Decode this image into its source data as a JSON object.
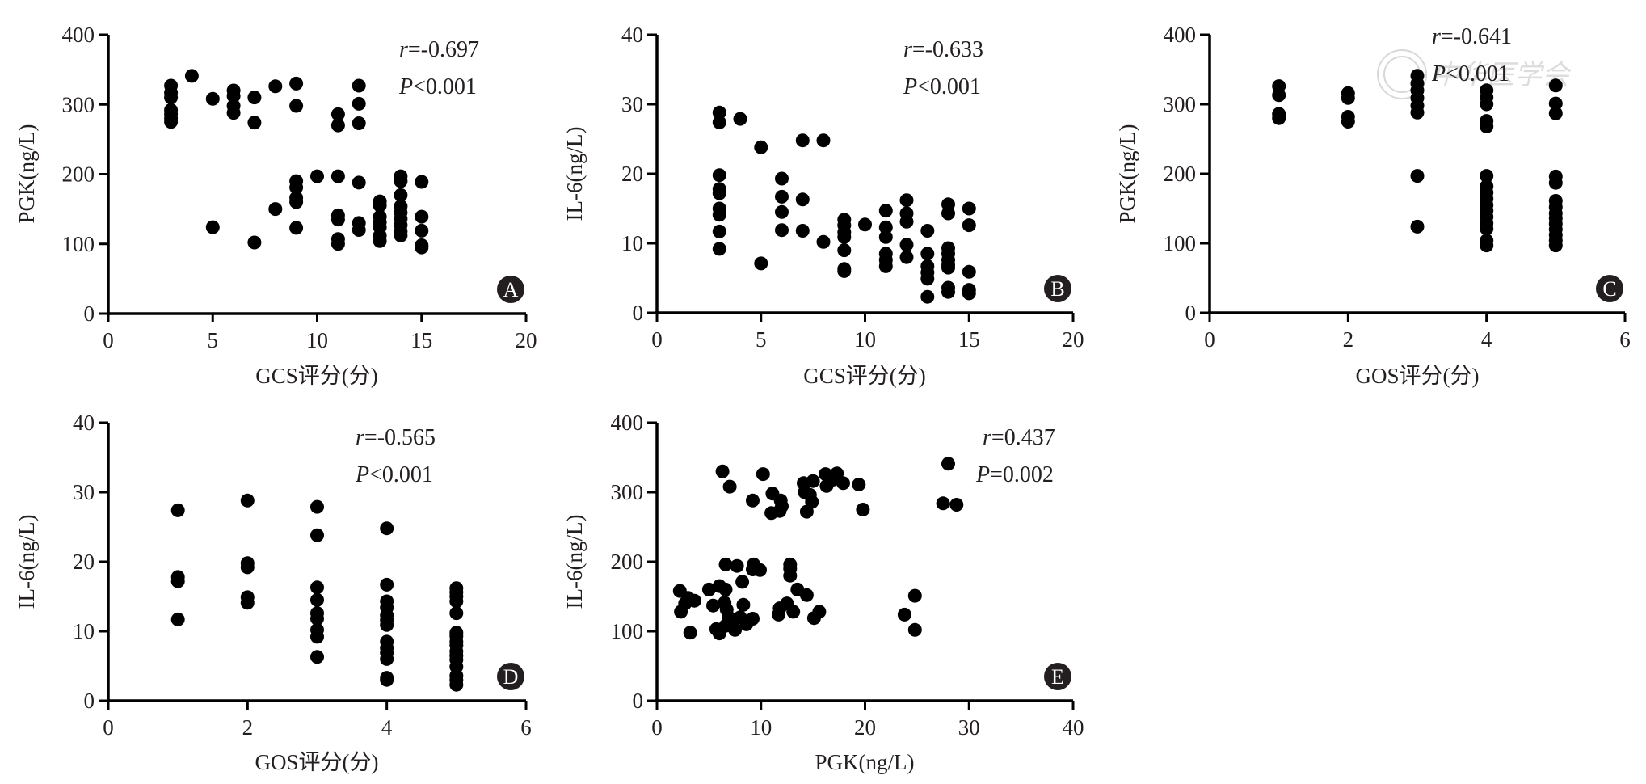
{
  "figure": {
    "watermark_text": "中华医学会"
  },
  "chart_data": [
    {
      "panel": "A",
      "type": "scatter",
      "xlabel": "GCS评分(分)",
      "ylabel": "PGK(ng/L)",
      "xlim": [
        0,
        20
      ],
      "ylim": [
        0,
        400
      ],
      "xticks": [
        "0",
        "5",
        "10",
        "15",
        "20"
      ],
      "yticks": [
        "0",
        "100",
        "200",
        "300",
        "400"
      ],
      "grid": false,
      "stats": {
        "r_label": "r",
        "r_value": "=-0.697",
        "p_label": "P",
        "p_value": "<0.001"
      },
      "points": [
        [
          3,
          327
        ],
        [
          3,
          317
        ],
        [
          3,
          310
        ],
        [
          3,
          292
        ],
        [
          3,
          286
        ],
        [
          3,
          280
        ],
        [
          3,
          275
        ],
        [
          4,
          341
        ],
        [
          5,
          308
        ],
        [
          5,
          124
        ],
        [
          6,
          320
        ],
        [
          6,
          312
        ],
        [
          6,
          298
        ],
        [
          6,
          288
        ],
        [
          7,
          310
        ],
        [
          7,
          274
        ],
        [
          7,
          102
        ],
        [
          8,
          326
        ],
        [
          8,
          150
        ],
        [
          9,
          330
        ],
        [
          9,
          298
        ],
        [
          9,
          190
        ],
        [
          9,
          181
        ],
        [
          9,
          166
        ],
        [
          9,
          160
        ],
        [
          9,
          123
        ],
        [
          10,
          197
        ],
        [
          11,
          286
        ],
        [
          11,
          270
        ],
        [
          11,
          197
        ],
        [
          11,
          141
        ],
        [
          11,
          135
        ],
        [
          11,
          107
        ],
        [
          11,
          100
        ],
        [
          12,
          327
        ],
        [
          12,
          301
        ],
        [
          12,
          273
        ],
        [
          12,
          188
        ],
        [
          12,
          130
        ],
        [
          12,
          120
        ],
        [
          13,
          161
        ],
        [
          13,
          155
        ],
        [
          13,
          139
        ],
        [
          13,
          131
        ],
        [
          13,
          124
        ],
        [
          13,
          112
        ],
        [
          13,
          104
        ],
        [
          14,
          197
        ],
        [
          14,
          190
        ],
        [
          14,
          170
        ],
        [
          14,
          154
        ],
        [
          14,
          145
        ],
        [
          14,
          136
        ],
        [
          14,
          127
        ],
        [
          14,
          118
        ],
        [
          14,
          112
        ],
        [
          15,
          189
        ],
        [
          15,
          139
        ],
        [
          15,
          119
        ],
        [
          15,
          98
        ],
        [
          15,
          95
        ]
      ]
    },
    {
      "panel": "B",
      "type": "scatter",
      "xlabel": "GCS评分(分)",
      "ylabel": "IL-6(ng/L)",
      "xlim": [
        0,
        20
      ],
      "ylim": [
        0,
        40
      ],
      "xticks": [
        "0",
        "5",
        "10",
        "15",
        "20"
      ],
      "yticks": [
        "0",
        "10",
        "20",
        "30",
        "40"
      ],
      "grid": false,
      "stats": {
        "r_label": "r",
        "r_value": "=-0.633",
        "p_label": "P",
        "p_value": "<0.001"
      },
      "points": [
        [
          3,
          28.8
        ],
        [
          3,
          27.4
        ],
        [
          3,
          19.8
        ],
        [
          3,
          17.8
        ],
        [
          3,
          17.2
        ],
        [
          3,
          15.0
        ],
        [
          3,
          14.1
        ],
        [
          3,
          11.7
        ],
        [
          3,
          9.2
        ],
        [
          4,
          27.9
        ],
        [
          5,
          23.8
        ],
        [
          5,
          7.1
        ],
        [
          6,
          19.3
        ],
        [
          6,
          16.7
        ],
        [
          6,
          14.5
        ],
        [
          6,
          11.9
        ],
        [
          7,
          24.8
        ],
        [
          7,
          16.3
        ],
        [
          7,
          11.8
        ],
        [
          8,
          24.8
        ],
        [
          8,
          10.2
        ],
        [
          9,
          13.4
        ],
        [
          9,
          12.6
        ],
        [
          9,
          11.6
        ],
        [
          9,
          10.9
        ],
        [
          9,
          9.0
        ],
        [
          9,
          6.3
        ],
        [
          9,
          6.0
        ],
        [
          10,
          12.7
        ],
        [
          11,
          14.7
        ],
        [
          11,
          12.3
        ],
        [
          11,
          10.9
        ],
        [
          11,
          8.5
        ],
        [
          11,
          7.6
        ],
        [
          11,
          6.7
        ],
        [
          12,
          16.2
        ],
        [
          12,
          14.3
        ],
        [
          12,
          13.1
        ],
        [
          12,
          9.8
        ],
        [
          12,
          8.0
        ],
        [
          13,
          11.8
        ],
        [
          13,
          8.5
        ],
        [
          13,
          6.7
        ],
        [
          13,
          5.8
        ],
        [
          13,
          4.9
        ],
        [
          13,
          2.3
        ],
        [
          14,
          15.6
        ],
        [
          14,
          14.3
        ],
        [
          14,
          9.3
        ],
        [
          14,
          8.5
        ],
        [
          14,
          7.6
        ],
        [
          14,
          6.9
        ],
        [
          14,
          6.5
        ],
        [
          14,
          3.6
        ],
        [
          14,
          3.0
        ],
        [
          15,
          15.0
        ],
        [
          15,
          12.6
        ],
        [
          15,
          5.9
        ],
        [
          15,
          3.3
        ],
        [
          15,
          2.8
        ]
      ]
    },
    {
      "panel": "C",
      "type": "scatter",
      "xlabel": "GOS评分(分)",
      "ylabel": "PGK(ng/L)",
      "xlim": [
        0,
        6
      ],
      "ylim": [
        0,
        400
      ],
      "xticks": [
        "0",
        "2",
        "4",
        "6"
      ],
      "yticks": [
        "0",
        "100",
        "200",
        "300",
        "400"
      ],
      "grid": false,
      "stats": {
        "r_label": "r",
        "r_value": "=-0.641",
        "p_label": "P",
        "p_value": "<0.001"
      },
      "points": [
        [
          1,
          326
        ],
        [
          1,
          313
        ],
        [
          1,
          286
        ],
        [
          1,
          280
        ],
        [
          2,
          316
        ],
        [
          2,
          309
        ],
        [
          2,
          282
        ],
        [
          2,
          275
        ],
        [
          3,
          341
        ],
        [
          3,
          330
        ],
        [
          3,
          320
        ],
        [
          3,
          309
        ],
        [
          3,
          298
        ],
        [
          3,
          288
        ],
        [
          3,
          197
        ],
        [
          3,
          124
        ],
        [
          4,
          320
        ],
        [
          4,
          310
        ],
        [
          4,
          300
        ],
        [
          4,
          276
        ],
        [
          4,
          268
        ],
        [
          4,
          197
        ],
        [
          4,
          182
        ],
        [
          4,
          173
        ],
        [
          4,
          164
        ],
        [
          4,
          155
        ],
        [
          4,
          147
        ],
        [
          4,
          138
        ],
        [
          4,
          129
        ],
        [
          4,
          121
        ],
        [
          4,
          104
        ],
        [
          4,
          97
        ],
        [
          5,
          327
        ],
        [
          5,
          301
        ],
        [
          5,
          287
        ],
        [
          5,
          196
        ],
        [
          5,
          187
        ],
        [
          5,
          161
        ],
        [
          5,
          152
        ],
        [
          5,
          143
        ],
        [
          5,
          136
        ],
        [
          5,
          128
        ],
        [
          5,
          120
        ],
        [
          5,
          112
        ],
        [
          5,
          104
        ],
        [
          5,
          97
        ]
      ]
    },
    {
      "panel": "D",
      "type": "scatter",
      "xlabel": "GOS评分(分)",
      "ylabel": "IL-6(ng/L)",
      "xlim": [
        0,
        6
      ],
      "ylim": [
        0,
        40
      ],
      "xticks": [
        "0",
        "2",
        "4",
        "6"
      ],
      "yticks": [
        "0",
        "10",
        "20",
        "30",
        "40"
      ],
      "grid": false,
      "stats": {
        "r_label": "r",
        "r_value": "=-0.565",
        "p_label": "P",
        "p_value": "<0.001"
      },
      "points": [
        [
          1,
          27.4
        ],
        [
          1,
          17.8
        ],
        [
          1,
          17.2
        ],
        [
          1,
          11.7
        ],
        [
          2,
          28.8
        ],
        [
          2,
          19.8
        ],
        [
          2,
          19.2
        ],
        [
          2,
          14.9
        ],
        [
          2,
          14.1
        ],
        [
          3,
          27.9
        ],
        [
          3,
          23.8
        ],
        [
          3,
          16.3
        ],
        [
          3,
          14.5
        ],
        [
          3,
          12.6
        ],
        [
          3,
          11.8
        ],
        [
          3,
          10.2
        ],
        [
          3,
          9.2
        ],
        [
          3,
          6.3
        ],
        [
          4,
          24.8
        ],
        [
          4,
          16.7
        ],
        [
          4,
          14.3
        ],
        [
          4,
          13.4
        ],
        [
          4,
          12.3
        ],
        [
          4,
          11.6
        ],
        [
          4,
          10.9
        ],
        [
          4,
          8.5
        ],
        [
          4,
          7.6
        ],
        [
          4,
          6.9
        ],
        [
          4,
          6.0
        ],
        [
          4,
          3.3
        ],
        [
          4,
          3.0
        ],
        [
          5,
          16.2
        ],
        [
          5,
          15.6
        ],
        [
          5,
          15.0
        ],
        [
          5,
          14.3
        ],
        [
          5,
          12.6
        ],
        [
          5,
          9.8
        ],
        [
          5,
          9.3
        ],
        [
          5,
          8.5
        ],
        [
          5,
          8.0
        ],
        [
          5,
          7.1
        ],
        [
          5,
          6.5
        ],
        [
          5,
          5.9
        ],
        [
          5,
          4.9
        ],
        [
          5,
          3.6
        ],
        [
          5,
          3.0
        ],
        [
          5,
          2.3
        ]
      ]
    },
    {
      "panel": "E",
      "type": "scatter",
      "xlabel": "PGK(ng/L)",
      "ylabel": "IL-6(ng/L)",
      "xlim": [
        0,
        40
      ],
      "ylim": [
        0,
        400
      ],
      "xticks": [
        "0",
        "10",
        "20",
        "30",
        "40"
      ],
      "yticks": [
        "0",
        "100",
        "200",
        "300",
        "400"
      ],
      "grid": false,
      "stats": {
        "r_label": "r",
        "r_value": "=0.437",
        "p_label": "P",
        "p_value": "=0.002"
      },
      "points": [
        [
          6.3,
          330
        ],
        [
          7.0,
          308
        ],
        [
          10.2,
          326
        ],
        [
          9.2,
          288
        ],
        [
          11.1,
          298
        ],
        [
          11.9,
          288
        ],
        [
          11.0,
          270
        ],
        [
          11.8,
          273
        ],
        [
          12.0,
          280
        ],
        [
          14.1,
          313
        ],
        [
          14.2,
          300
        ],
        [
          14.7,
          296
        ],
        [
          14.9,
          286
        ],
        [
          14.4,
          272
        ],
        [
          15.0,
          316
        ],
        [
          16.2,
          326
        ],
        [
          16.3,
          309
        ],
        [
          17.3,
          327
        ],
        [
          16.9,
          318
        ],
        [
          17.9,
          313
        ],
        [
          19.4,
          311
        ],
        [
          19.8,
          275
        ],
        [
          28.0,
          341
        ],
        [
          27.5,
          284
        ],
        [
          28.8,
          282
        ],
        [
          2.2,
          158
        ],
        [
          2.3,
          128
        ],
        [
          2.7,
          140
        ],
        [
          3.0,
          148
        ],
        [
          3.6,
          144
        ],
        [
          3.2,
          98
        ],
        [
          5.0,
          160
        ],
        [
          6.0,
          165
        ],
        [
          6.6,
          160
        ],
        [
          5.4,
          137
        ],
        [
          6.5,
          141
        ],
        [
          6.7,
          131
        ],
        [
          6.9,
          120
        ],
        [
          7.3,
          116
        ],
        [
          5.7,
          103
        ],
        [
          6.0,
          97
        ],
        [
          6.6,
          108
        ],
        [
          7.5,
          102
        ],
        [
          8.0,
          120
        ],
        [
          8.3,
          138
        ],
        [
          8.6,
          110
        ],
        [
          9.2,
          118
        ],
        [
          6.6,
          196
        ],
        [
          7.7,
          194
        ],
        [
          8.2,
          171
        ],
        [
          9.3,
          196
        ],
        [
          9.2,
          189
        ],
        [
          9.9,
          188
        ],
        [
          12.8,
          196
        ],
        [
          12.8,
          190
        ],
        [
          12.8,
          180
        ],
        [
          13.5,
          160
        ],
        [
          14.4,
          152
        ],
        [
          11.7,
          124
        ],
        [
          11.8,
          133
        ],
        [
          12.5,
          140
        ],
        [
          13.1,
          128
        ],
        [
          15.1,
          119
        ],
        [
          15.6,
          128
        ],
        [
          23.8,
          124
        ],
        [
          24.8,
          151
        ],
        [
          24.8,
          102
        ]
      ]
    }
  ]
}
